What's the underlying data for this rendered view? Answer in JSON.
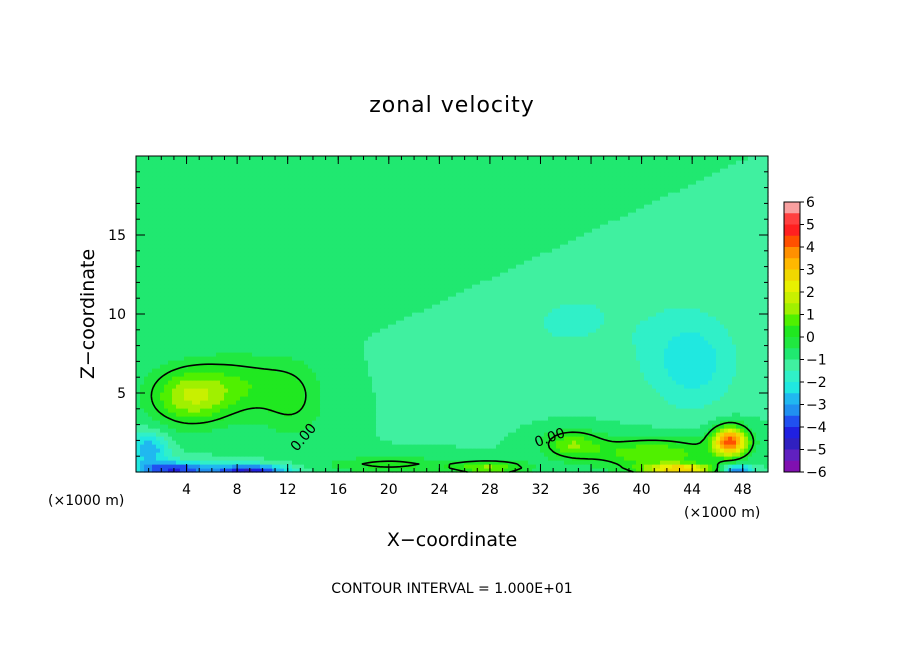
{
  "chart_data": {
    "type": "heatmap",
    "title": "zonal velocity",
    "xlabel": "X−coordinate",
    "ylabel": "Z−coordinate",
    "x_unit": "(×1000 m)",
    "x_unit_right": "(×1000 m)",
    "xlim": [
      0,
      50
    ],
    "ylim": [
      0,
      20
    ],
    "x_ticks": [
      4,
      8,
      12,
      16,
      20,
      24,
      28,
      32,
      36,
      40,
      44,
      48
    ],
    "y_ticks": [
      5,
      10,
      15
    ],
    "colorbar": {
      "ticks": [
        "6",
        "5",
        "4",
        "3",
        "2",
        "1",
        "0",
        "−1",
        "−2",
        "−3",
        "−4",
        "−5",
        "−6"
      ],
      "levels_from_top": [
        5.5,
        5,
        4.5,
        4,
        3.5,
        3,
        2.5,
        2,
        1.5,
        1,
        0.5,
        0,
        -0.5,
        -1,
        -1.5,
        -2,
        -2.5,
        -3,
        -3.5,
        -4,
        -4.5,
        -5,
        -5.5,
        -6
      ],
      "colors_from_top": [
        "#f8a0a0",
        "#ff4040",
        "#ff2020",
        "#ff5000",
        "#ff9000",
        "#ffb800",
        "#f0d800",
        "#e8f000",
        "#c8f000",
        "#a0f000",
        "#50f000",
        "#20e820",
        "#20e840",
        "#20e870",
        "#40f0a0",
        "#30f0c8",
        "#20e8e0",
        "#20b8f0",
        "#2090f0",
        "#2050f0",
        "#2020e0",
        "#3020c0",
        "#6020c0",
        "#8010b0"
      ]
    },
    "contour_labels": [
      "0.00",
      "0.00"
    ],
    "contour_level": 0.0,
    "field_description": "background ~ -1 (light green); positive cell x 1-16 km below z 7.5 km peaking ~1.3 near x=4; positive jet x 33-50 km near ground peaking ~4.5 at x=47,z=2; negative ~ -3 to -4 near ground x 0-14 km",
    "field_features": [
      {
        "x": 4.2,
        "z": 4.8,
        "amp": 2.3,
        "sx": 3.2,
        "sz": 1.8
      },
      {
        "x": 8.5,
        "z": 5.5,
        "amp": 1.2,
        "sx": 4.0,
        "sz": 2.0
      },
      {
        "x": 12.5,
        "z": 4.5,
        "amp": 0.9,
        "sx": 2.5,
        "sz": 2.5
      },
      {
        "x": 47.0,
        "z": 2.0,
        "amp": 5.2,
        "sx": 1.4,
        "sz": 0.9
      },
      {
        "x": 41.0,
        "z": 1.2,
        "amp": 2.0,
        "sx": 5.0,
        "sz": 1.0
      },
      {
        "x": 34.5,
        "z": 1.8,
        "amp": 1.8,
        "sx": 2.3,
        "sz": 0.9
      },
      {
        "x": 28.0,
        "z": 0.3,
        "amp": 2.0,
        "sx": 3.0,
        "sz": 0.45
      },
      {
        "x": 43.0,
        "z": 0.2,
        "amp": 3.5,
        "sx": 3.0,
        "sz": 0.35
      },
      {
        "x": 20.0,
        "z": 0.5,
        "amp": 1.2,
        "sx": 5.0,
        "sz": 0.5
      },
      {
        "x": 3.0,
        "z": 0.2,
        "amp": -3.0,
        "sx": 3.0,
        "sz": 0.5
      },
      {
        "x": 9.0,
        "z": 0.1,
        "amp": -3.5,
        "sx": 3.0,
        "sz": 0.4
      },
      {
        "x": 1.0,
        "z": 1.5,
        "amp": -2.0,
        "sx": 1.5,
        "sz": 1.0
      },
      {
        "x": 34.0,
        "z": 10.0,
        "amp": -0.6,
        "sx": 8.0,
        "sz": 4.0
      },
      {
        "x": 44.0,
        "z": 7.0,
        "amp": -1.3,
        "sx": 3.5,
        "sz": 3.0
      },
      {
        "x": 28.0,
        "z": 14.0,
        "amp": 0.3,
        "sx": 8.0,
        "sz": 4.0
      },
      {
        "x": 47.5,
        "z": 0.2,
        "amp": -3.0,
        "sx": 1.2,
        "sz": 0.3
      }
    ],
    "background": -1.0
  },
  "footer": "CONTOUR INTERVAL = 1.000E+01"
}
